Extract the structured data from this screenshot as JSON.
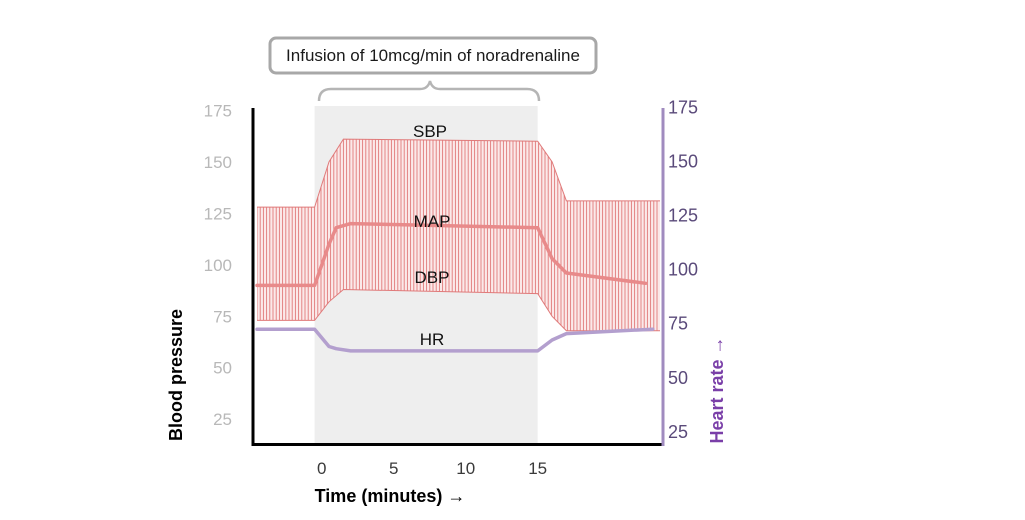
{
  "chart_data": {
    "type": "area",
    "title": "Infusion of 10mcg/min of noradrenaline",
    "xlabel": "Time (minutes) →",
    "ylabel_left": "Blood pressure",
    "ylabel_right": "Heart rate →",
    "x_ticks": [
      0,
      5,
      10,
      15
    ],
    "x_range": [
      -4.5,
      23.5
    ],
    "y_left_ticks": [
      25,
      50,
      75,
      100,
      125,
      150,
      175
    ],
    "y_left_range": [
      12,
      180
    ],
    "y_right_ticks": [
      25,
      50,
      75,
      100,
      125,
      150,
      175
    ],
    "y_right_range": [
      18,
      178
    ],
    "infusion_window": [
      -0.5,
      15
    ],
    "series": [
      {
        "name": "SBP",
        "label": "SBP",
        "x": [
          -4.5,
          -0.5,
          0.5,
          1.5,
          15,
          16,
          17,
          23.5
        ],
        "values": [
          128,
          128,
          150,
          161,
          160,
          150,
          131,
          131
        ]
      },
      {
        "name": "DBP",
        "label": "DBP",
        "x": [
          -4.5,
          -0.5,
          0.5,
          1.5,
          15,
          16,
          17,
          23.5
        ],
        "values": [
          73,
          73,
          82,
          88,
          86,
          75,
          68,
          68
        ]
      },
      {
        "name": "MAP",
        "label": "MAP",
        "x": [
          -4.5,
          -0.5,
          0.5,
          1,
          2,
          15,
          16,
          17,
          22.5
        ],
        "values": [
          90,
          90,
          110,
          118,
          120,
          118,
          103,
          96,
          91
        ]
      },
      {
        "name": "HR",
        "label": "HR",
        "x": [
          -4.5,
          -0.5,
          0.5,
          1,
          2,
          15,
          16,
          17,
          23
        ],
        "values": [
          72,
          72,
          64,
          63,
          62,
          62,
          67,
          70,
          72
        ]
      }
    ],
    "colors": {
      "bp_band": "#e07a7a",
      "map": "#e88a8a",
      "hr": "#b39fce",
      "shade": "#eeeeee",
      "left_axis": "#000000",
      "right_axis": "#a08bbf",
      "right_title": "#7a3fa8"
    }
  }
}
